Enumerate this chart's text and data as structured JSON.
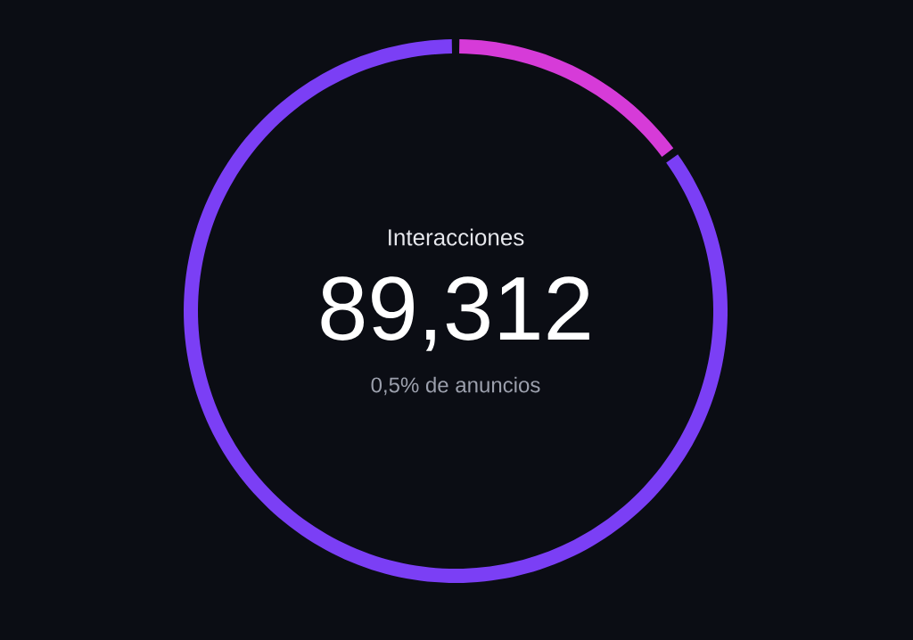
{
  "chart_data": {
    "type": "donut",
    "title": "Interacciones",
    "annotations": [
      "89,312",
      "0,5% de anuncios"
    ],
    "categories": [
      null,
      null
    ],
    "values": [
      15,
      85
    ],
    "colors": [
      "#d63bd8",
      "#7b3ff5"
    ]
  }
}
